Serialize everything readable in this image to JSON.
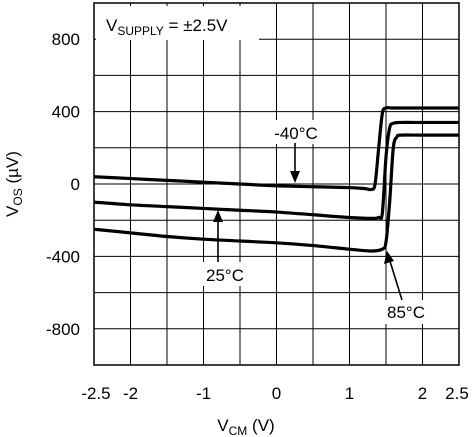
{
  "chart_data": {
    "type": "line",
    "annotation": {
      "label": "V",
      "sub": "SUPPLY",
      "rest": " = ±2.5V"
    },
    "xlabel": {
      "main": "V",
      "sub": "CM",
      "rest": " (V)"
    },
    "ylabel": {
      "main": "V",
      "sub": "OS",
      "rest": " (µV)"
    },
    "xlim": [
      -2.5,
      2.5
    ],
    "ylim": [
      -1000,
      1000
    ],
    "x_ticks": [
      -2.5,
      -2,
      -1,
      0,
      1,
      2,
      2.5
    ],
    "x_tick_labels": [
      "-2.5",
      "-2",
      "-1",
      "0",
      "1",
      "2",
      "2.5"
    ],
    "y_ticks": [
      800,
      400,
      0,
      -400,
      -800
    ],
    "y_tick_labels": [
      "800",
      "400",
      "0",
      "-400",
      "-800"
    ],
    "grid": true,
    "series": [
      {
        "name": "-40°C",
        "x": [
          -2.5,
          -2.0,
          -1.5,
          -1.0,
          -0.5,
          0.0,
          0.5,
          1.0,
          1.2,
          1.3,
          1.35,
          1.4,
          1.45,
          1.5,
          1.6,
          2.0,
          2.5
        ],
        "y": [
          40,
          30,
          20,
          10,
          0,
          -10,
          -15,
          -20,
          -25,
          -30,
          0,
          200,
          390,
          420,
          420,
          420,
          420
        ]
      },
      {
        "name": "25°C",
        "x": [
          -2.5,
          -2.0,
          -1.5,
          -1.0,
          -0.5,
          0.0,
          0.5,
          1.0,
          1.3,
          1.4,
          1.45,
          1.5,
          1.55,
          1.6,
          1.7,
          2.0,
          2.5
        ],
        "y": [
          -100,
          -115,
          -125,
          -135,
          -145,
          -155,
          -170,
          -185,
          -190,
          -185,
          -160,
          150,
          310,
          335,
          340,
          340,
          340
        ]
      },
      {
        "name": "85°C",
        "x": [
          -2.5,
          -2.0,
          -1.5,
          -1.0,
          -0.5,
          0.0,
          0.5,
          1.0,
          1.3,
          1.45,
          1.5,
          1.55,
          1.6,
          1.65,
          1.7,
          2.0,
          2.5
        ],
        "y": [
          -250,
          -270,
          -290,
          -305,
          -315,
          -325,
          -340,
          -360,
          -370,
          -360,
          -320,
          -100,
          200,
          260,
          270,
          270,
          270
        ]
      }
    ],
    "annotations": [
      {
        "text": "-40°C",
        "series": "-40°C"
      },
      {
        "text": "25°C",
        "series": "25°C"
      },
      {
        "text": "85°C",
        "series": "85°C"
      }
    ]
  }
}
